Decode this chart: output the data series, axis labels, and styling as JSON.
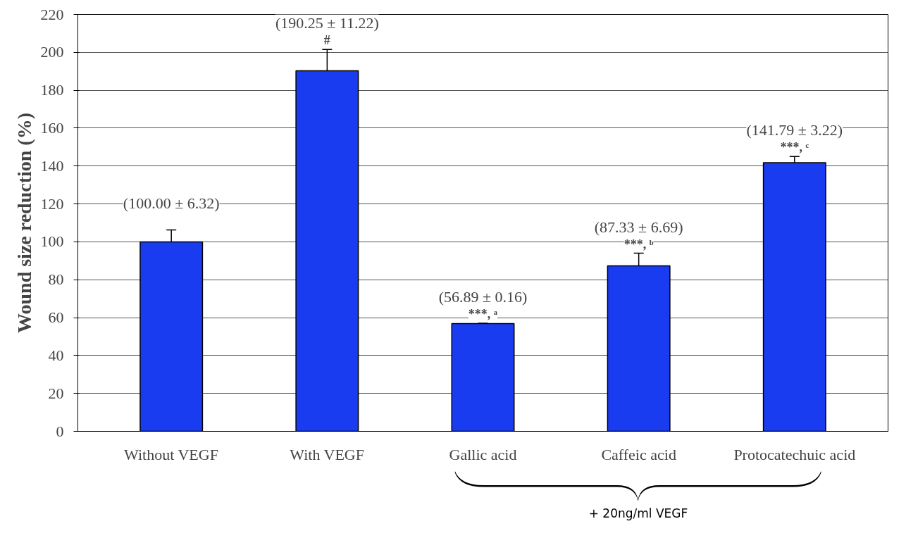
{
  "chart_data": {
    "type": "bar",
    "ylabel": "Wound size reduction (%)",
    "categories": [
      "Without VEGF",
      "With VEGF",
      "Gallic acid",
      "Caffeic acid",
      "Protocatechuic acid"
    ],
    "values": [
      100.0,
      190.25,
      56.89,
      87.33,
      141.79
    ],
    "errors": [
      6.32,
      11.22,
      0.16,
      6.69,
      3.22
    ],
    "value_labels": [
      "(100.00 ± 6.32)",
      "(190.25 ± 11.22)",
      "(56.89 ± 0.16)",
      "(87.33 ± 6.69)",
      "(141.79 ± 3.22)"
    ],
    "color": "#1a3cf0",
    "ylim": [
      0,
      220
    ],
    "yticks": [
      0,
      20,
      40,
      60,
      80,
      100,
      120,
      140,
      160,
      180,
      200,
      220
    ],
    "grid": "y",
    "annotations": [
      {
        "text": "#",
        "x": "With VEGF",
        "y": 201.47
      },
      {
        "text": "***, ᵃ",
        "x": "Gallic acid",
        "y": 57.05
      },
      {
        "text": "***, ᵇ",
        "x": "Caffeic acid",
        "y": 94.02
      },
      {
        "text": "***, ᶜ",
        "x": "Protocatechuic acid",
        "y": 145.01
      },
      "+ 20ng/ml VEGF"
    ]
  }
}
